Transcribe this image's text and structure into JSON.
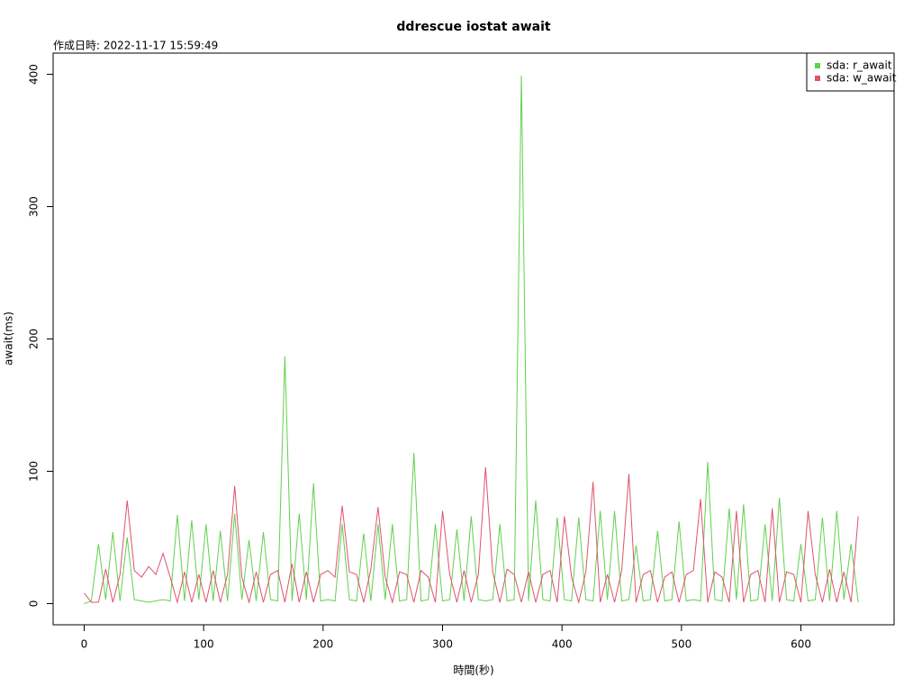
{
  "chart_data": {
    "type": "line",
    "title": "ddrescue iostat await",
    "subtitle": "作成日時: 2022-11-17 15:59:49",
    "x_label": "時間(秒)",
    "y_label": "await(ms)",
    "x": [
      0,
      6,
      12,
      18,
      24,
      30,
      36,
      42,
      48,
      54,
      60,
      66,
      72,
      78,
      84,
      90,
      96,
      102,
      108,
      114,
      120,
      126,
      132,
      138,
      144,
      150,
      156,
      162,
      168,
      174,
      180,
      186,
      192,
      198,
      204,
      210,
      216,
      222,
      228,
      234,
      240,
      246,
      252,
      258,
      264,
      270,
      276,
      282,
      288,
      294,
      300,
      306,
      312,
      318,
      324,
      330,
      336,
      342,
      348,
      354,
      360,
      366,
      372,
      378,
      384,
      390,
      396,
      402,
      408,
      414,
      420,
      426,
      432,
      438,
      444,
      450,
      456,
      462,
      468,
      474,
      480,
      486,
      492,
      498,
      504,
      510,
      516,
      522,
      528,
      534,
      540,
      546,
      552,
      558,
      564,
      570,
      576,
      582,
      588,
      594,
      600,
      606,
      612,
      618,
      624,
      630,
      636,
      642,
      648
    ],
    "series": [
      {
        "name": "sda: r_await",
        "color": "#61D04F",
        "values": [
          0,
          2,
          45,
          3,
          54,
          2,
          50,
          3,
          2,
          1,
          2,
          3,
          2,
          67,
          2,
          63,
          3,
          60,
          2,
          55,
          2,
          68,
          3,
          48,
          2,
          54,
          3,
          2,
          187,
          2,
          68,
          3,
          91,
          2,
          3,
          2,
          60,
          3,
          2,
          53,
          2,
          60,
          3,
          60,
          2,
          3,
          114,
          2,
          3,
          60,
          2,
          3,
          56,
          2,
          66,
          3,
          2,
          3,
          60,
          2,
          3,
          399,
          2,
          78,
          3,
          2,
          65,
          3,
          2,
          65,
          3,
          2,
          70,
          3,
          70,
          2,
          3,
          44,
          2,
          3,
          55,
          2,
          3,
          62,
          2,
          3,
          2,
          107,
          3,
          2,
          72,
          3,
          75,
          2,
          3,
          60,
          2,
          80,
          3,
          2,
          45,
          2,
          3,
          65,
          2,
          70,
          3,
          45,
          1
        ]
      },
      {
        "name": "sda: w_await",
        "color": "#DF536B",
        "values": [
          8,
          1,
          1,
          26,
          1,
          22,
          78,
          25,
          20,
          28,
          22,
          38,
          20,
          1,
          24,
          1,
          22,
          1,
          25,
          1,
          22,
          89,
          20,
          1,
          24,
          1,
          22,
          25,
          1,
          30,
          1,
          24,
          1,
          22,
          25,
          20,
          74,
          24,
          22,
          1,
          26,
          73,
          20,
          1,
          24,
          22,
          1,
          25,
          20,
          1,
          70,
          22,
          1,
          25,
          1,
          22,
          103,
          24,
          1,
          26,
          22,
          1,
          24,
          1,
          22,
          25,
          1,
          66,
          20,
          1,
          24,
          92,
          1,
          22,
          1,
          25,
          98,
          1,
          22,
          25,
          1,
          20,
          24,
          1,
          22,
          25,
          79,
          1,
          24,
          20,
          1,
          70,
          1,
          22,
          25,
          1,
          72,
          1,
          24,
          22,
          1,
          70,
          22,
          1,
          26,
          1,
          24,
          1,
          66
        ]
      }
    ],
    "xlim": [
      -26,
      678
    ],
    "ylim": [
      -16,
      416
    ],
    "xticks": [
      0,
      100,
      200,
      300,
      400,
      500,
      600
    ],
    "yticks": [
      0,
      100,
      200,
      300,
      400
    ],
    "legend": "top-right"
  }
}
